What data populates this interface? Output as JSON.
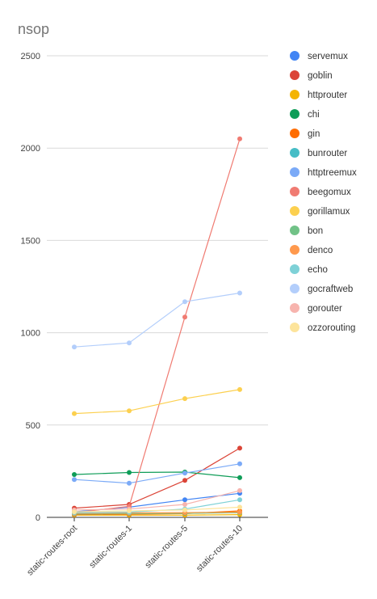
{
  "chart_data": {
    "type": "line",
    "title": "nsop",
    "xlabel": "",
    "ylabel": "",
    "categories": [
      "static-routes-root",
      "static-routes-1",
      "static-routes-5",
      "static-routes-10"
    ],
    "ylim": [
      0,
      2500
    ],
    "yticks": [
      0,
      500,
      1000,
      1500,
      2000,
      2500
    ],
    "grid": true,
    "legend_position": "right",
    "series": [
      {
        "name": "servemux",
        "color": "#4285f4",
        "values": [
          30,
          55,
          95,
          130
        ]
      },
      {
        "name": "goblin",
        "color": "#db4437",
        "values": [
          50,
          70,
          200,
          375
        ]
      },
      {
        "name": "httprouter",
        "color": "#f4b400",
        "values": [
          12,
          12,
          12,
          15
        ]
      },
      {
        "name": "chi",
        "color": "#0f9d58",
        "values": [
          232,
          243,
          245,
          215
        ]
      },
      {
        "name": "gin",
        "color": "#ff6d01",
        "values": [
          15,
          17,
          20,
          35
        ]
      },
      {
        "name": "bunrouter",
        "color": "#46bdc6",
        "values": [
          20,
          22,
          24,
          25
        ]
      },
      {
        "name": "httptreemux",
        "color": "#7baaf7",
        "values": [
          205,
          185,
          240,
          290
        ]
      },
      {
        "name": "beegomux",
        "color": "#f07b72",
        "values": [
          25,
          60,
          1085,
          2050
        ]
      },
      {
        "name": "gorillamux",
        "color": "#fcd04f",
        "values": [
          562,
          577,
          643,
          692
        ]
      },
      {
        "name": "bon",
        "color": "#71c287",
        "values": [
          18,
          20,
          22,
          25
        ]
      },
      {
        "name": "denco",
        "color": "#ff994d",
        "values": [
          22,
          24,
          26,
          28
        ]
      },
      {
        "name": "echo",
        "color": "#7ed1d7",
        "values": [
          25,
          28,
          45,
          95
        ]
      },
      {
        "name": "gocraftweb",
        "color": "#b3cefb",
        "values": [
          923,
          945,
          1168,
          1215
        ]
      },
      {
        "name": "gorouter",
        "color": "#f7b4ae",
        "values": [
          40,
          45,
          70,
          145
        ]
      },
      {
        "name": "ozzorouting",
        "color": "#fde49b",
        "values": [
          30,
          35,
          40,
          55
        ]
      }
    ]
  }
}
